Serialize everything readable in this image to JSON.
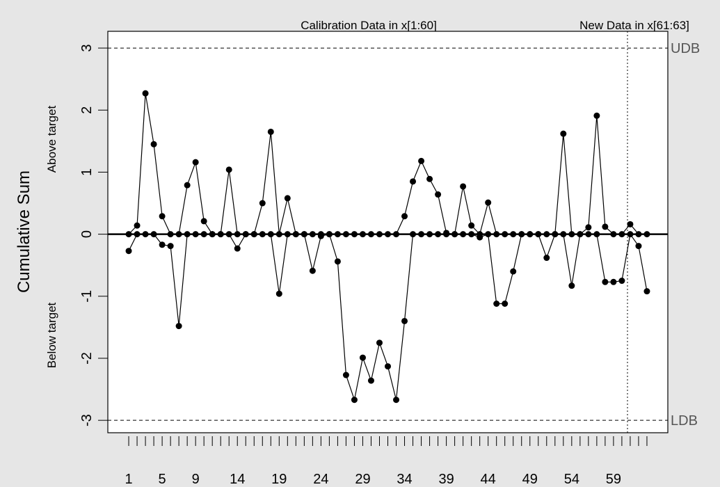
{
  "chart_data": {
    "type": "cusum",
    "y_label": "Cumulative Sum",
    "above_label": "Above target",
    "below_label": "Below target",
    "annotations": [
      "Calibration Data in x[1:60]",
      "New Data in x[61:63]"
    ],
    "decision_boundaries": [
      {
        "value": 3,
        "label": "UDB"
      },
      {
        "value": -3,
        "label": "LDB"
      }
    ],
    "x": [
      1,
      2,
      3,
      4,
      5,
      6,
      7,
      8,
      9,
      10,
      11,
      12,
      13,
      14,
      15,
      16,
      17,
      18,
      19,
      20,
      21,
      22,
      23,
      24,
      25,
      26,
      27,
      28,
      29,
      30,
      31,
      32,
      33,
      34,
      35,
      36,
      37,
      38,
      39,
      40,
      41,
      42,
      43,
      44,
      45,
      46,
      47,
      48,
      49,
      50,
      51,
      52,
      53,
      54,
      55,
      56,
      57,
      58,
      59,
      60,
      61,
      62,
      63
    ],
    "series": [
      {
        "color": "#000000",
        "values": [
          0,
          0.14,
          2.27,
          1.45,
          0.29,
          0,
          0,
          0.79,
          1.16,
          0.21,
          0,
          0,
          1.04,
          0,
          0,
          0,
          0.5,
          1.65,
          0,
          0.58,
          0,
          0,
          0,
          0,
          0,
          0,
          0,
          0,
          0,
          0,
          0,
          0,
          0,
          0.29,
          0.85,
          1.18,
          0.89,
          0.64,
          0.02,
          0,
          0.77,
          0.14,
          0,
          0.51,
          0,
          0,
          0,
          0,
          0,
          0,
          0,
          0,
          1.62,
          0,
          0,
          0.11,
          1.91,
          0.12,
          0,
          0,
          0.16,
          0,
          0
        ]
      },
      {
        "color": "#000000",
        "values": [
          -0.27,
          0,
          0,
          0,
          -0.17,
          -0.19,
          -1.48,
          0,
          0,
          0,
          0,
          0,
          0,
          -0.23,
          0,
          0,
          0,
          0,
          -0.96,
          0,
          0,
          0,
          -0.59,
          -0.03,
          0,
          -0.44,
          -2.27,
          -2.67,
          -1.99,
          -2.36,
          -1.75,
          -2.13,
          -2.67,
          -1.4,
          0,
          0,
          0,
          0,
          0,
          0,
          0,
          0,
          -0.05,
          0,
          -1.12,
          -1.12,
          -0.6,
          0,
          0,
          0,
          -0.38,
          0,
          0,
          -0.83,
          0,
          0,
          0,
          -0.77,
          -0.77,
          -0.75,
          0,
          -0.19,
          -0.92
        ]
      }
    ],
    "xlim": [
      -1.5,
      65.5
    ],
    "xticks": [
      1,
      5,
      9,
      14,
      19,
      24,
      29,
      34,
      39,
      44,
      49,
      54,
      59
    ],
    "ylim": [
      -3.2,
      3.27
    ],
    "yticks": [
      -3,
      -2,
      -1,
      0,
      1,
      2,
      3
    ]
  }
}
